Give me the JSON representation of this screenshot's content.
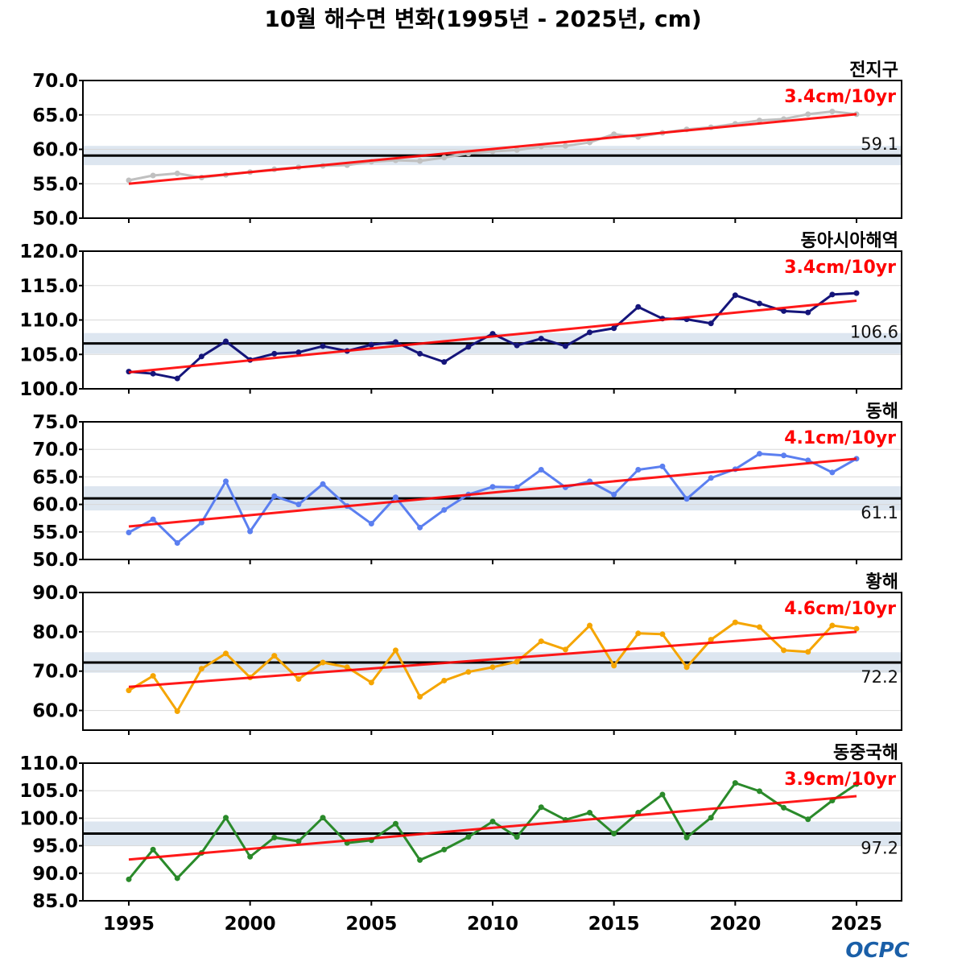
{
  "chart_data": {
    "type": "line",
    "title": "10월 해수면 변화(1995년 - 2025년, cm)",
    "x": [
      1995,
      1996,
      1997,
      1998,
      1999,
      2000,
      2001,
      2002,
      2003,
      2004,
      2005,
      2006,
      2007,
      2008,
      2009,
      2010,
      2011,
      2012,
      2013,
      2014,
      2015,
      2016,
      2017,
      2018,
      2019,
      2020,
      2021,
      2022,
      2023,
      2024,
      2025
    ],
    "xticks": [
      1995,
      2000,
      2005,
      2010,
      2015,
      2020,
      2025
    ],
    "xlim": [
      1991.1,
      2026.9
    ],
    "grid": true,
    "panels": [
      {
        "name": "전지구",
        "color": "#c0c0c0",
        "ylim": [
          50,
          70
        ],
        "yticks": [
          50,
          55,
          60,
          65,
          70
        ],
        "mean": 59.1,
        "mean_label": "59.1",
        "mean_label_pos": "above",
        "band": 1.4,
        "trend_label": "3.4cm/10yr",
        "trend": [
          55.0,
          65.1
        ],
        "values": [
          55.5,
          56.2,
          56.5,
          55.9,
          56.3,
          56.7,
          57.1,
          57.4,
          57.6,
          57.7,
          58.2,
          58.4,
          58.3,
          58.8,
          59.4,
          59.7,
          59.9,
          60.4,
          60.5,
          61.0,
          62.2,
          61.8,
          62.4,
          62.9,
          63.2,
          63.7,
          64.2,
          64.4,
          65.1,
          65.5,
          65.1
        ]
      },
      {
        "name": "동아시아해역",
        "color": "#15157a",
        "ylim": [
          100,
          120
        ],
        "yticks": [
          100,
          105,
          110,
          115,
          120
        ],
        "mean": 106.6,
        "mean_label": "106.6",
        "mean_label_pos": "above",
        "band": 1.5,
        "trend_label": "3.4cm/10yr",
        "trend": [
          102.4,
          112.8
        ],
        "values": [
          102.5,
          102.2,
          101.5,
          104.7,
          106.9,
          104.2,
          105.1,
          105.3,
          106.2,
          105.5,
          106.4,
          106.8,
          105.1,
          103.9,
          106.1,
          108.0,
          106.3,
          107.3,
          106.2,
          108.2,
          108.8,
          111.9,
          110.2,
          110.1,
          109.5,
          113.6,
          112.4,
          111.3,
          111.1,
          113.7,
          113.9
        ]
      },
      {
        "name": "동해",
        "color": "#5b7ff0",
        "ylim": [
          50,
          75
        ],
        "yticks": [
          50,
          55,
          60,
          65,
          70,
          75
        ],
        "mean": 61.1,
        "mean_label": "61.1",
        "mean_label_pos": "below",
        "band": 2.2,
        "trend_label": "4.1cm/10yr",
        "trend": [
          56.0,
          68.3
        ],
        "values": [
          54.9,
          57.3,
          53.0,
          56.7,
          64.2,
          55.1,
          61.5,
          60.0,
          63.7,
          59.7,
          56.5,
          61.3,
          55.8,
          59.0,
          61.8,
          63.2,
          63.1,
          66.3,
          63.1,
          64.2,
          61.8,
          66.3,
          66.9,
          61.0,
          64.8,
          66.4,
          69.2,
          68.9,
          68.0,
          65.8,
          68.3
        ]
      },
      {
        "name": "황해",
        "color": "#f5a500",
        "ylim": [
          55,
          90
        ],
        "yticks": [
          60,
          70,
          80,
          90
        ],
        "mean": 72.2,
        "mean_label": "72.2",
        "mean_label_pos": "below",
        "band": 2.6,
        "trend_label": "4.6cm/10yr",
        "trend": [
          66.0,
          80.0
        ],
        "values": [
          65.1,
          68.8,
          59.8,
          70.6,
          74.5,
          68.4,
          73.9,
          68.0,
          72.2,
          71.0,
          67.1,
          75.3,
          63.5,
          67.6,
          69.8,
          71.0,
          72.4,
          77.6,
          75.5,
          81.6,
          71.4,
          79.6,
          79.4,
          71.0,
          78.0,
          82.4,
          81.2,
          75.3,
          74.9,
          81.6,
          80.8
        ]
      },
      {
        "name": "동중국해",
        "color": "#2a8a2a",
        "ylim": [
          85,
          110
        ],
        "yticks": [
          85,
          90,
          95,
          100,
          105,
          110
        ],
        "mean": 97.2,
        "mean_label": "97.2",
        "mean_label_pos": "below",
        "band": 2.2,
        "trend_label": "3.9cm/10yr",
        "trend": [
          92.5,
          104.0
        ],
        "values": [
          88.9,
          94.3,
          89.1,
          93.7,
          100.1,
          93.0,
          96.5,
          95.8,
          100.1,
          95.5,
          96.0,
          99.0,
          92.4,
          94.3,
          96.6,
          99.4,
          96.6,
          102.0,
          99.7,
          101.0,
          97.2,
          101.0,
          104.3,
          96.5,
          100.1,
          106.4,
          104.9,
          101.9,
          99.8,
          103.2,
          106.2
        ]
      }
    ]
  },
  "logo": "OCPC"
}
